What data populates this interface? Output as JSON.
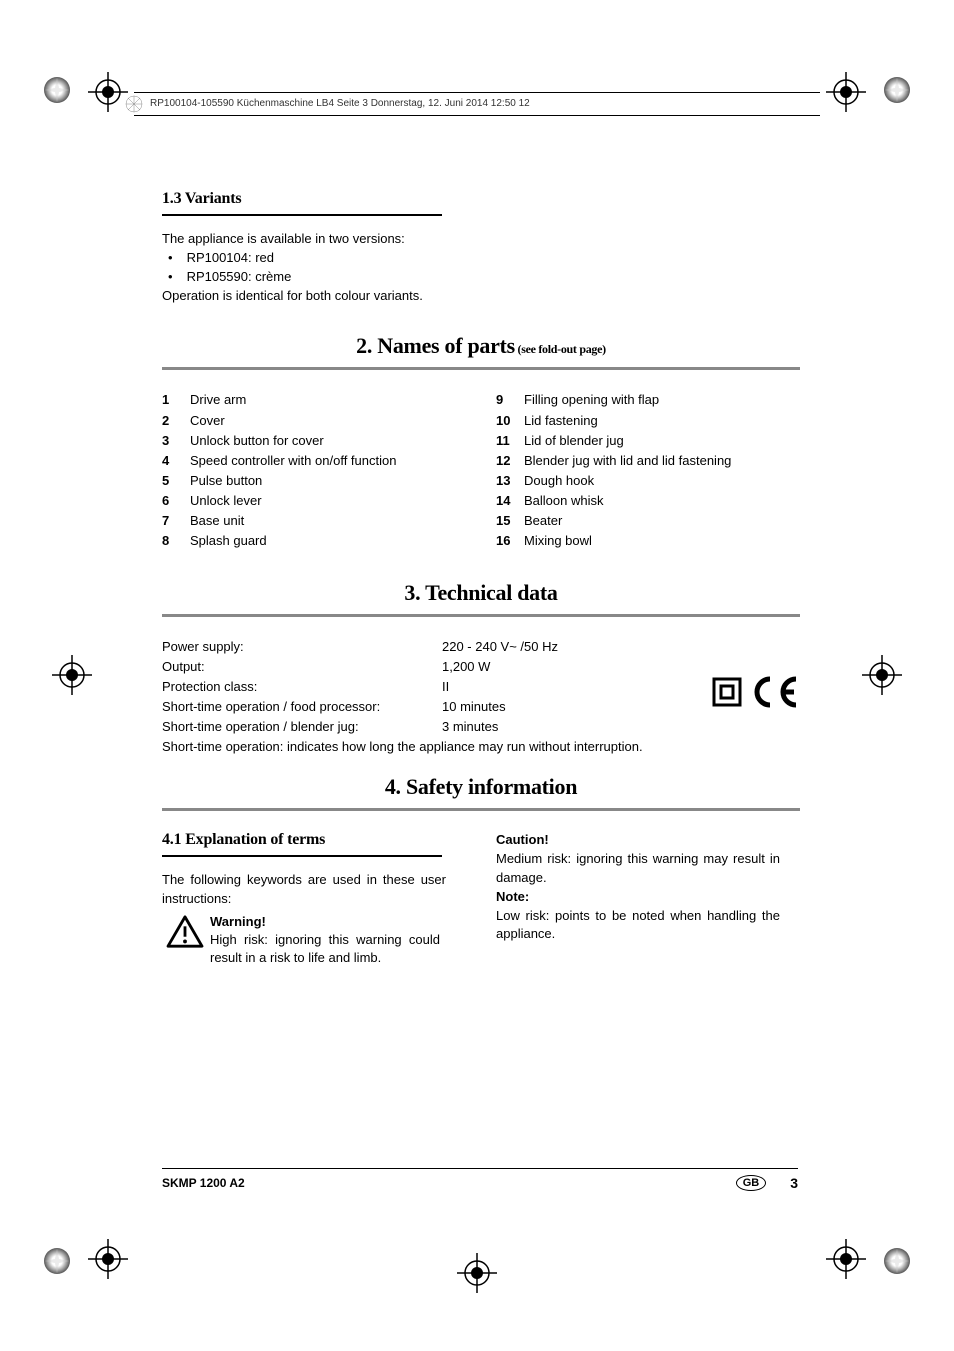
{
  "header": {
    "text": "RP100104-105590 Küchenmaschine LB4  Seite 3  Donnerstag, 12. Juni 2014  12:50 12"
  },
  "section_1_3": {
    "title": "1.3 Variants",
    "intro": "The appliance is available in two versions:",
    "bullets": [
      "RP100104: red",
      "RP105590: crème"
    ],
    "outro": "Operation is identical for both colour variants."
  },
  "section_2": {
    "title_main": "2. Names of parts",
    "title_sub": " (see fold-out page)",
    "items_left": [
      {
        "n": "1",
        "t": "Drive arm"
      },
      {
        "n": "2",
        "t": "Cover"
      },
      {
        "n": "3",
        "t": "Unlock button for cover"
      },
      {
        "n": "4",
        "t": "Speed controller with on/off function"
      },
      {
        "n": "5",
        "t": "Pulse button"
      },
      {
        "n": "6",
        "t": "Unlock lever"
      },
      {
        "n": "7",
        "t": "Base unit"
      },
      {
        "n": "8",
        "t": "Splash guard"
      }
    ],
    "items_right": [
      {
        "n": "9",
        "t": "Filling opening with flap"
      },
      {
        "n": "10",
        "t": "Lid fastening"
      },
      {
        "n": "11",
        "t": "Lid of blender jug"
      },
      {
        "n": "12",
        "t": "Blender jug with lid and lid fastening"
      },
      {
        "n": "13",
        "t": "Dough hook"
      },
      {
        "n": "14",
        "t": "Balloon whisk"
      },
      {
        "n": "15",
        "t": "Beater"
      },
      {
        "n": "16",
        "t": "Mixing bowl"
      }
    ]
  },
  "section_3": {
    "title": "3. Technical data",
    "rows": [
      {
        "label": "Power supply:",
        "value": "220 - 240 V~ /50 Hz"
      },
      {
        "label": "Output:",
        "value": "1,200 W"
      },
      {
        "label": "Protection class:",
        "value": "II"
      },
      {
        "label": "Short-time operation / food processor:",
        "value": "10 minutes"
      },
      {
        "label": "Short-time operation / blender jug:",
        "value": "3 minutes"
      }
    ],
    "note": "Short-time operation: indicates how long the appliance may run without interruption."
  },
  "section_4": {
    "title": "4. Safety information",
    "sub_4_1": {
      "title": "4.1 Explanation of terms",
      "intro": "The following keywords are used in these user instructions:",
      "warning_label": "Warning!",
      "warning_text": "High risk: ignoring this warning could result in a risk to life and limb.",
      "caution_label": "Caution!",
      "caution_text": "Medium risk: ignoring this warning may result in damage.",
      "note_label": "Note:",
      "note_text": "Low risk: points to be noted when handling the appliance."
    }
  },
  "footer": {
    "model": "SKMP 1200 A2",
    "region": "GB",
    "page": "3"
  }
}
